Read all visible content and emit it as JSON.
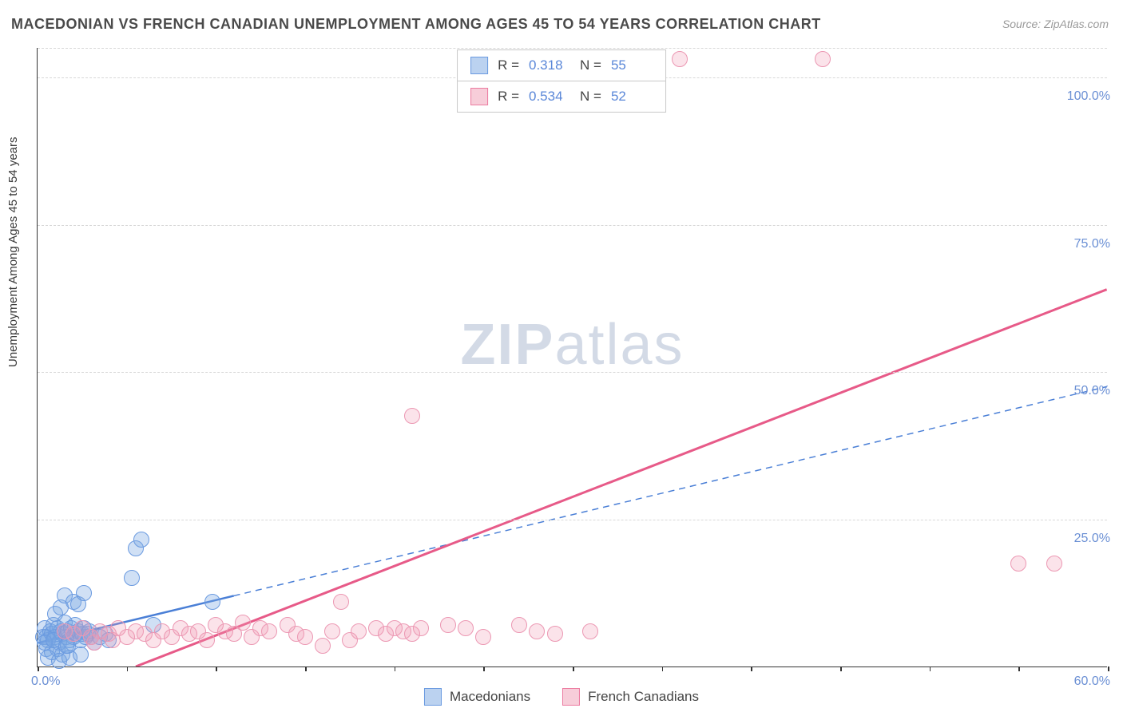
{
  "title": "MACEDONIAN VS FRENCH CANADIAN UNEMPLOYMENT AMONG AGES 45 TO 54 YEARS CORRELATION CHART",
  "source": "Source: ZipAtlas.com",
  "y_axis_label": "Unemployment Among Ages 45 to 54 years",
  "watermark_bold": "ZIP",
  "watermark_rest": "atlas",
  "chart": {
    "type": "scatter",
    "xlim": [
      0,
      60
    ],
    "ylim": [
      0,
      105
    ],
    "x_tick_positions": [
      0,
      5,
      10,
      15,
      20,
      25,
      30,
      35,
      40,
      45,
      50,
      55,
      60
    ],
    "x_left_label": "0.0%",
    "x_right_label": "60.0%",
    "y_ticks": [
      {
        "v": 25,
        "label": "25.0%"
      },
      {
        "v": 50,
        "label": "50.0%"
      },
      {
        "v": 75,
        "label": "75.0%"
      },
      {
        "v": 100,
        "label": "100.0%"
      }
    ],
    "background_color": "#ffffff",
    "grid_color": "#d8d8d8",
    "marker_radius": 10,
    "series": [
      {
        "name": "Macedonians",
        "color_fill": "rgba(120,165,225,0.35)",
        "color_stroke": "#6a9ae0",
        "css_class": "blue",
        "R": "0.318",
        "N": "55",
        "trend": {
          "x1": 0,
          "y1": 4,
          "x2": 11,
          "y2": 12,
          "solid": true,
          "dash_x2": 60,
          "dash_y2": 47.5,
          "color": "#4a7fd6",
          "width": 2.5
        },
        "points": [
          [
            0.3,
            5
          ],
          [
            0.4,
            6.5
          ],
          [
            0.5,
            5
          ],
          [
            0.6,
            4.5
          ],
          [
            0.7,
            6
          ],
          [
            0.8,
            5.5
          ],
          [
            0.9,
            7
          ],
          [
            1.0,
            5
          ],
          [
            1.1,
            6.5
          ],
          [
            1.2,
            4
          ],
          [
            1.3,
            6
          ],
          [
            1.4,
            5.5
          ],
          [
            1.5,
            7.5
          ],
          [
            1.6,
            5
          ],
          [
            1.7,
            6
          ],
          [
            1.8,
            4.5
          ],
          [
            1.9,
            6.5
          ],
          [
            2.0,
            5
          ],
          [
            2.1,
            7
          ],
          [
            2.2,
            5.5
          ],
          [
            2.3,
            6
          ],
          [
            2.4,
            4.5
          ],
          [
            2.5,
            5.5
          ],
          [
            2.6,
            6.5
          ],
          [
            2.7,
            5
          ],
          [
            2.8,
            5.5
          ],
          [
            2.9,
            6
          ],
          [
            3.0,
            5
          ],
          [
            1.0,
            9
          ],
          [
            1.3,
            10
          ],
          [
            1.5,
            12
          ],
          [
            2.0,
            11
          ],
          [
            2.3,
            10.5
          ],
          [
            2.6,
            12.5
          ],
          [
            0.5,
            3
          ],
          [
            0.8,
            2.5
          ],
          [
            1.1,
            3
          ],
          [
            1.4,
            2
          ],
          [
            1.7,
            3.5
          ],
          [
            0.6,
            1.5
          ],
          [
            1.2,
            1
          ],
          [
            1.8,
            1.5
          ],
          [
            2.4,
            2
          ],
          [
            3.2,
            4
          ],
          [
            3.5,
            5
          ],
          [
            3.8,
            5.5
          ],
          [
            4.0,
            4.5
          ],
          [
            5.5,
            20
          ],
          [
            5.8,
            21.5
          ],
          [
            5.3,
            15
          ],
          [
            6.5,
            7
          ],
          [
            9.8,
            11
          ],
          [
            0.4,
            4
          ],
          [
            0.9,
            4.5
          ],
          [
            1.6,
            3.5
          ]
        ]
      },
      {
        "name": "French Canadians",
        "color_fill": "rgba(240,155,180,0.28)",
        "color_stroke": "#ec98b3",
        "css_class": "pink",
        "R": "0.534",
        "N": "52",
        "trend": {
          "x1": 5.5,
          "y1": 0,
          "x2": 60,
          "y2": 64,
          "solid": true,
          "color": "#e75a88",
          "width": 3
        },
        "points": [
          [
            1.5,
            6
          ],
          [
            2.0,
            5.5
          ],
          [
            2.5,
            6.5
          ],
          [
            3.0,
            5
          ],
          [
            3.5,
            6
          ],
          [
            4.0,
            5.5
          ],
          [
            4.5,
            6.5
          ],
          [
            5.0,
            5
          ],
          [
            5.5,
            6
          ],
          [
            6.0,
            5.5
          ],
          [
            6.5,
            4.5
          ],
          [
            7.0,
            6
          ],
          [
            7.5,
            5
          ],
          [
            8.0,
            6.5
          ],
          [
            8.5,
            5.5
          ],
          [
            9.0,
            6
          ],
          [
            9.5,
            4.5
          ],
          [
            10.0,
            7
          ],
          [
            10.5,
            6
          ],
          [
            11.0,
            5.5
          ],
          [
            11.5,
            7.5
          ],
          [
            12.0,
            5
          ],
          [
            12.5,
            6.5
          ],
          [
            13.0,
            6
          ],
          [
            14.0,
            7
          ],
          [
            14.5,
            5.5
          ],
          [
            15.0,
            5
          ],
          [
            16.0,
            3.5
          ],
          [
            16.5,
            6
          ],
          [
            17.0,
            11
          ],
          [
            17.5,
            4.5
          ],
          [
            18.0,
            6
          ],
          [
            19.0,
            6.5
          ],
          [
            19.5,
            5.5
          ],
          [
            20.0,
            6.5
          ],
          [
            20.5,
            6
          ],
          [
            21.0,
            5.5
          ],
          [
            21.5,
            6.5
          ],
          [
            23.0,
            7
          ],
          [
            24.0,
            6.5
          ],
          [
            25.0,
            5
          ],
          [
            27.0,
            7
          ],
          [
            28.0,
            6
          ],
          [
            29.0,
            5.5
          ],
          [
            21.0,
            42.5
          ],
          [
            31.0,
            6
          ],
          [
            36.0,
            103
          ],
          [
            44.0,
            103
          ],
          [
            55.0,
            17.5
          ],
          [
            57.0,
            17.5
          ],
          [
            3.2,
            4
          ],
          [
            4.2,
            4.5
          ]
        ]
      }
    ]
  },
  "stats_labels": {
    "R": "R =",
    "N": "N ="
  },
  "legend": {
    "items": [
      {
        "label": "Macedonians",
        "class": "blue"
      },
      {
        "label": "French Canadians",
        "class": "pink"
      }
    ]
  }
}
